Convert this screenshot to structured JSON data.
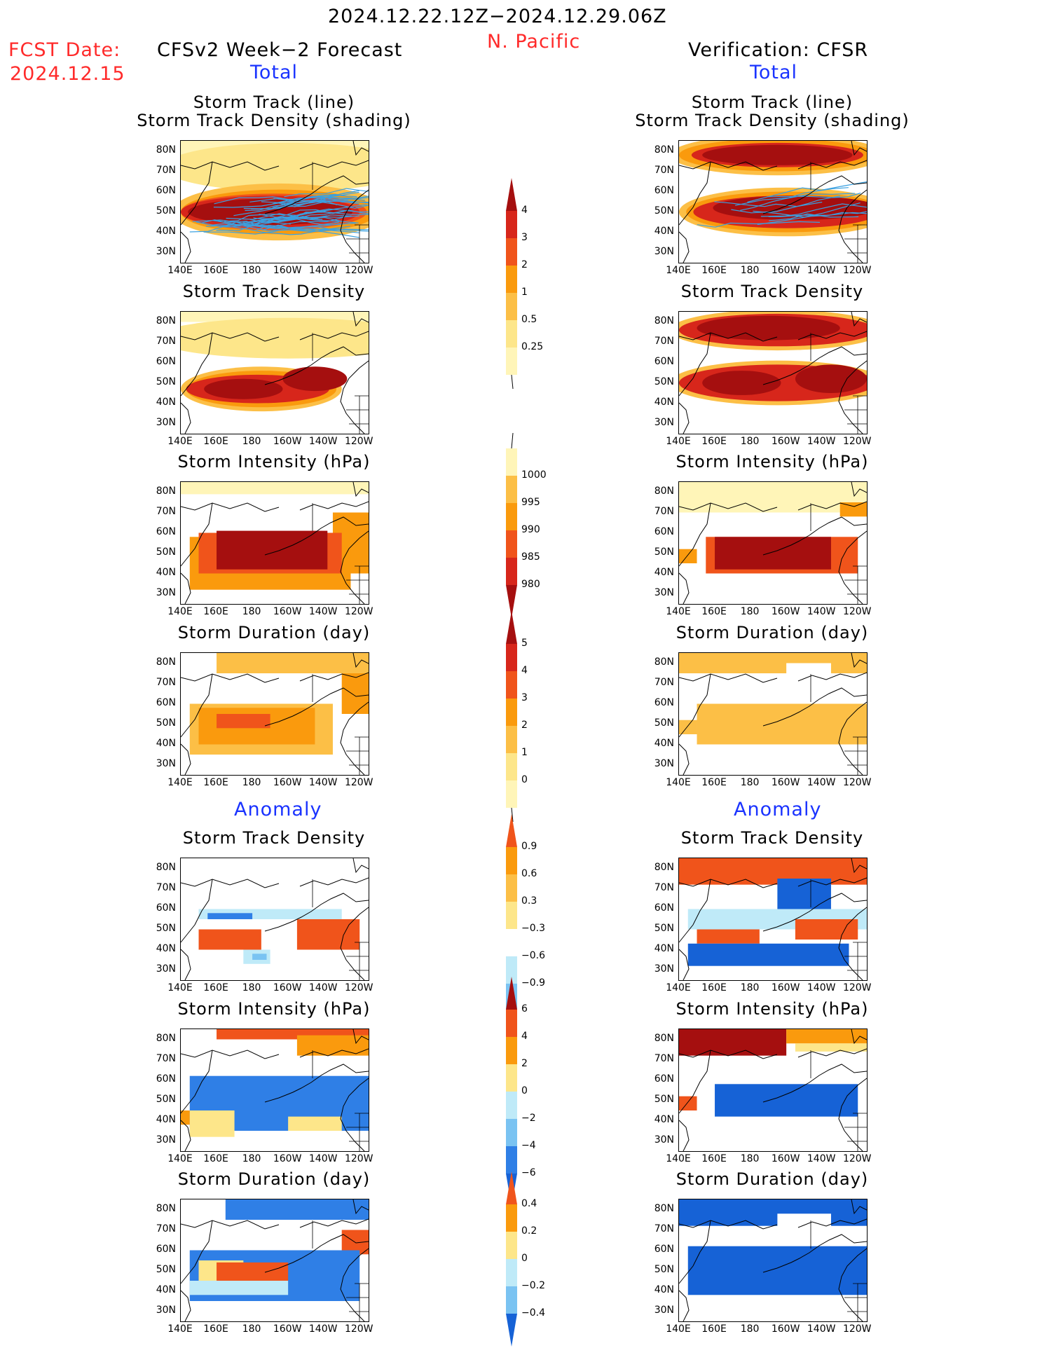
{
  "header": {
    "period": "2024.12.22.12Z−2024.12.29.06Z",
    "region": "N. Pacific",
    "fcst_label": "FCST Date:",
    "fcst_date": "2024.12.15",
    "left_title": "CFSv2 Week−2 Forecast",
    "right_title": "Verification: CFSR",
    "total_label": "Total",
    "anomaly_label": "Anomaly"
  },
  "axes": {
    "lat_labels": [
      "80N",
      "70N",
      "60N",
      "50N",
      "40N",
      "30N"
    ],
    "lon_labels": [
      "140E",
      "160E",
      "180",
      "160W",
      "140W",
      "120W"
    ]
  },
  "panel_titles": {
    "track_line": "Storm Track (line)",
    "track_shading": "Storm Track Density (shading)",
    "density": "Storm Track Density",
    "intensity": "Storm Intensity (hPa)",
    "duration": "Storm Duration (day)"
  },
  "colorbars": {
    "density": [
      "4",
      "3",
      "2",
      "1",
      "0.5",
      "0.25"
    ],
    "intensity": [
      "1000",
      "995",
      "990",
      "985",
      "980"
    ],
    "duration": [
      "5",
      "4",
      "3",
      "2",
      "1",
      "0"
    ],
    "density_anom": [
      "0.9",
      "0.6",
      "0.3",
      "−0.3",
      "−0.6",
      "−0.9"
    ],
    "intensity_anom": [
      "6",
      "4",
      "2",
      "0",
      "−2",
      "−4",
      "−6"
    ],
    "duration_anom": [
      "0.4",
      "0.2",
      "0",
      "−0.2",
      "−0.4"
    ]
  },
  "colors": {
    "dark_red": "#a50f0f",
    "red": "#d7261b",
    "red_orange": "#f0541b",
    "orange": "#fa9a0d",
    "light_orange": "#fcbf46",
    "yellow": "#fde68a",
    "pale_yellow": "#fff5b8",
    "pale_blue": "#bfeaf8",
    "light_blue": "#7ac3f2",
    "blue": "#2f7fe6",
    "dark_blue": "#1662d6",
    "track_line": "#3aa0e0"
  },
  "chart_data": {
    "type": "heatmap",
    "domain": {
      "lon_range": [
        "140E",
        "115W"
      ],
      "lat_range": [
        "25N",
        "85N"
      ]
    },
    "panels": [
      {
        "side": "forecast",
        "field": "storm track density with track lines",
        "pattern": "dense band 40N–60N from 150E to 130W, max > 4"
      },
      {
        "side": "verification",
        "field": "storm track density with track lines",
        "pattern": "two bands: 70N–85N and 40N–60N, max > 4"
      },
      {
        "side": "forecast",
        "field": "storm track density",
        "pattern": "band 35N–60N, max near 170E and 150W"
      },
      {
        "side": "verification",
        "field": "storm track density",
        "pattern": "bands at 75N and 50N"
      },
      {
        "side": "forecast",
        "field": "storm intensity (hPa)",
        "pattern": "< 980 over 35N–60N, 160E–140W"
      },
      {
        "side": "verification",
        "field": "storm intensity (hPa)",
        "pattern": "< 980 over 40N–60N, 160E–130W"
      },
      {
        "side": "forecast",
        "field": "storm duration (day)",
        "pattern": "2–4 days over 35N–60N"
      },
      {
        "side": "verification",
        "field": "storm duration (day)",
        "pattern": "1–2 days over 40N–80N"
      },
      {
        "side": "forecast",
        "field": "density anomaly",
        "pattern": "positive 40N–50N, negative patches near 180"
      },
      {
        "side": "verification",
        "field": "density anomaly",
        "pattern": "positive north of 70N and 45N–55N, negative 35N–45N"
      },
      {
        "side": "forecast",
        "field": "intensity anomaly",
        "pattern": "negative over 35N–60N, positive north of 75N"
      },
      {
        "side": "verification",
        "field": "intensity anomaly",
        "pattern": "strong positive 70N–85N, negative 40N–60N"
      },
      {
        "side": "forecast",
        "field": "duration anomaly",
        "pattern": "positive 45N–55N west, negative elsewhere"
      },
      {
        "side": "verification",
        "field": "duration anomaly",
        "pattern": "negative over most of domain"
      }
    ]
  }
}
